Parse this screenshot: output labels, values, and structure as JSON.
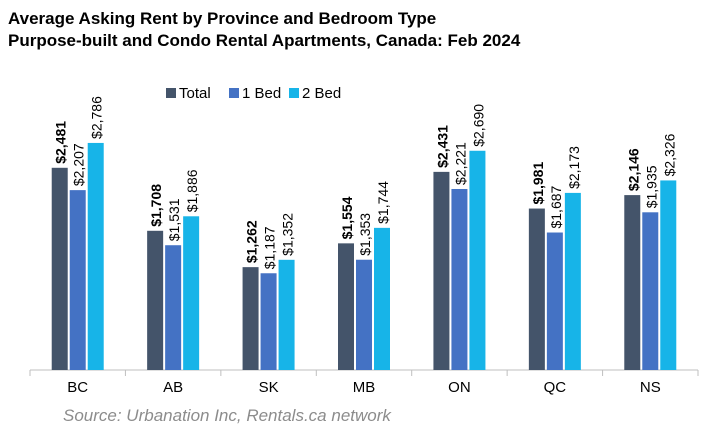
{
  "title": "Average Asking Rent by Province and Bedroom Type",
  "subtitle": "Purpose-built and Condo Rental Apartments, Canada: Feb 2024",
  "source": "Source: Urbanation Inc, Rentals.ca network",
  "chart_data": {
    "type": "bar",
    "title": "Average Asking Rent by Province and Bedroom Type",
    "subtitle": "Purpose-built and Condo Rental Apartments, Canada: Feb 2024",
    "xlabel": "",
    "ylabel": "",
    "ylim": [
      0,
      3000
    ],
    "grid": false,
    "legend_position": "top",
    "categories": [
      "BC",
      "AB",
      "SK",
      "MB",
      "ON",
      "QC",
      "NS"
    ],
    "series": [
      {
        "name": "Total",
        "color": "#44546a",
        "values": [
          2481,
          1708,
          1262,
          1554,
          2431,
          1981,
          2146
        ],
        "labels": [
          "$2,481",
          "$1,708",
          "$1,262",
          "$1,554",
          "$2,431",
          "$1,981",
          "$2,146"
        ],
        "label_bold": true
      },
      {
        "name": "1 Bed",
        "color": "#4472c4",
        "values": [
          2207,
          1531,
          1187,
          1353,
          2221,
          1687,
          1935
        ],
        "labels": [
          "$2,207",
          "$1,531",
          "$1,187",
          "$1,353",
          "$2,221",
          "$1,687",
          "$1,935"
        ],
        "label_bold": false
      },
      {
        "name": "2 Bed",
        "color": "#17b4e8",
        "values": [
          2786,
          1886,
          1352,
          1744,
          2690,
          2173,
          2326
        ],
        "labels": [
          "$2,786",
          "$1,886",
          "$1,352",
          "$1,744",
          "$2,690",
          "$2,173",
          "$2,326"
        ],
        "label_bold": false
      }
    ]
  }
}
